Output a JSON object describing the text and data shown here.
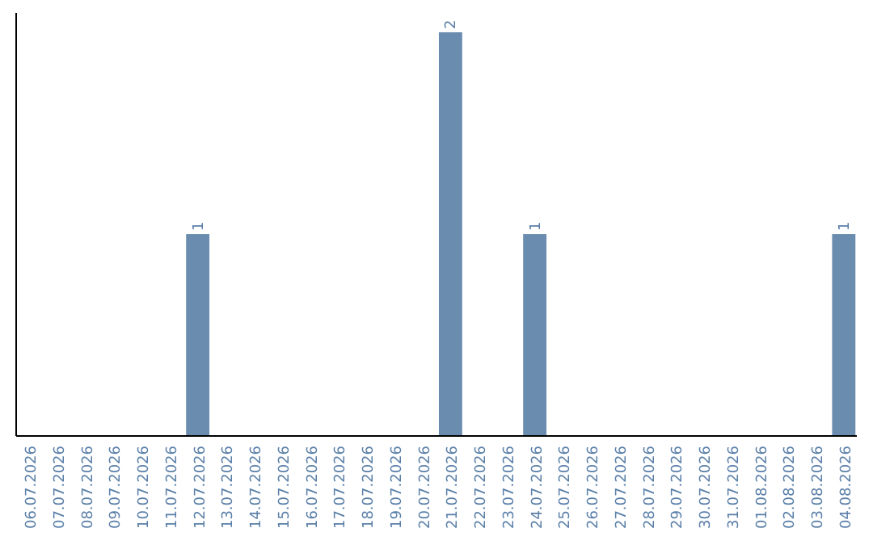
{
  "chart_data": {
    "type": "bar",
    "categories": [
      "06.07.2026",
      "07.07.2026",
      "08.07.2026",
      "09.07.2026",
      "10.07.2026",
      "11.07.2026",
      "12.07.2026",
      "13.07.2026",
      "14.07.2026",
      "15.07.2026",
      "16.07.2026",
      "17.07.2026",
      "18.07.2026",
      "19.07.2026",
      "20.07.2026",
      "21.07.2026",
      "22.07.2026",
      "23.07.2026",
      "24.07.2026",
      "25.07.2026",
      "26.07.2026",
      "27.07.2026",
      "28.07.2026",
      "29.07.2026",
      "30.07.2026",
      "31.07.2026",
      "01.08.2026",
      "02.08.2026",
      "03.08.2026",
      "04.08.2026"
    ],
    "values": [
      0,
      0,
      0,
      0,
      0,
      0,
      1,
      0,
      0,
      0,
      0,
      0,
      0,
      0,
      0,
      2,
      0,
      0,
      1,
      0,
      0,
      0,
      0,
      0,
      0,
      0,
      0,
      0,
      0,
      1
    ],
    "color": "#6a8caf",
    "value_labels": [
      null,
      null,
      null,
      null,
      null,
      null,
      "1",
      null,
      null,
      null,
      null,
      null,
      null,
      null,
      null,
      "2",
      null,
      null,
      "1",
      null,
      null,
      null,
      null,
      null,
      null,
      null,
      null,
      null,
      null,
      "1"
    ]
  }
}
